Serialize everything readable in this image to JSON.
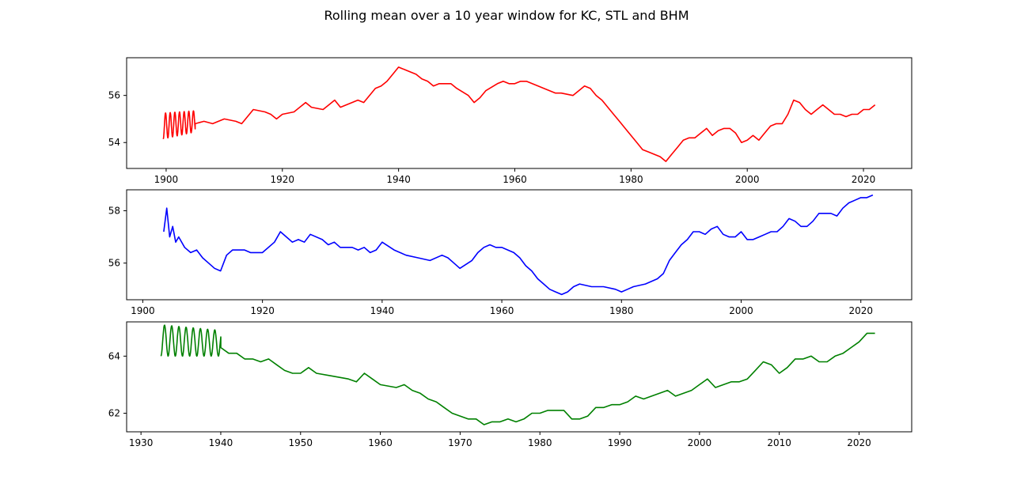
{
  "figure": {
    "title": "Rolling mean over a 10 year window for KC, STL and BHM"
  },
  "chart_data": [
    {
      "type": "line",
      "title": "",
      "xlabel": "",
      "ylabel": "",
      "xlim": [
        1893.2,
        2028.3
      ],
      "ylim": [
        52.9,
        57.6
      ],
      "xticks": [
        1900,
        1920,
        1940,
        1960,
        1980,
        2000,
        2020
      ],
      "yticks": [
        54,
        56
      ],
      "grid": false,
      "series": [
        {
          "color": "#ff0000",
          "oscillation": {
            "start": 1899.5,
            "end": 1905.0,
            "period": 0.8,
            "center_start": 54.7,
            "center_end": 54.9,
            "amplitude_start": 0.55,
            "amplitude_end": 0.45
          },
          "x": [
            1905.0,
            1906.5,
            1908,
            1909,
            1910,
            1912,
            1913,
            1914,
            1915,
            1917,
            1918,
            1919,
            1920,
            1922,
            1924,
            1925,
            1927,
            1928,
            1929,
            1930,
            1932,
            1933,
            1934,
            1935,
            1936,
            1937,
            1938,
            1939,
            1940,
            1941,
            1942,
            1943,
            1944,
            1945,
            1946,
            1947,
            1949,
            1950,
            1952,
            1953,
            1954,
            1955,
            1957,
            1958,
            1959,
            1960,
            1961,
            1962,
            1964,
            1965,
            1967,
            1968,
            1970,
            1971,
            1972,
            1973,
            1974,
            1975,
            1976,
            1977,
            1978,
            1979,
            1980,
            1981,
            1982,
            1983,
            1984,
            1985,
            1986,
            1987,
            1988,
            1989,
            1990,
            1991,
            1992,
            1993,
            1994,
            1995,
            1996,
            1997,
            1998,
            1999,
            2000,
            2001,
            2002,
            2003,
            2004,
            2005,
            2006,
            2007,
            2008,
            2009,
            2010,
            2011,
            2012,
            2013,
            2014,
            2015,
            2016,
            2017,
            2018,
            2019,
            2020,
            2021,
            2022
          ],
          "y": [
            54.8,
            54.9,
            54.8,
            54.9,
            55.0,
            54.9,
            54.8,
            55.1,
            55.4,
            55.3,
            55.2,
            55.0,
            55.2,
            55.3,
            55.7,
            55.5,
            55.4,
            55.6,
            55.8,
            55.5,
            55.7,
            55.8,
            55.7,
            56.0,
            56.3,
            56.4,
            56.6,
            56.9,
            57.2,
            57.1,
            57.0,
            56.9,
            56.7,
            56.6,
            56.4,
            56.5,
            56.5,
            56.3,
            56.0,
            55.7,
            55.9,
            56.2,
            56.5,
            56.6,
            56.5,
            56.5,
            56.6,
            56.6,
            56.4,
            56.3,
            56.1,
            56.1,
            56.0,
            56.2,
            56.4,
            56.3,
            56.0,
            55.8,
            55.5,
            55.2,
            54.9,
            54.6,
            54.3,
            54.0,
            53.7,
            53.6,
            53.5,
            53.4,
            53.2,
            53.5,
            53.8,
            54.1,
            54.2,
            54.2,
            54.4,
            54.6,
            54.3,
            54.5,
            54.6,
            54.6,
            54.4,
            54.0,
            54.1,
            54.3,
            54.1,
            54.4,
            54.7,
            54.8,
            54.8,
            55.2,
            55.8,
            55.7,
            55.4,
            55.2,
            55.4,
            55.6,
            55.4,
            55.2,
            55.2,
            55.1,
            55.2,
            55.2,
            55.4,
            55.4,
            55.6
          ]
        }
      ]
    },
    {
      "type": "line",
      "title": "",
      "xlabel": "",
      "ylabel": "",
      "xlim": [
        1897.3,
        2028.5
      ],
      "ylim": [
        54.6,
        58.8
      ],
      "xticks": [
        1900,
        1920,
        1940,
        1960,
        1980,
        2000,
        2020
      ],
      "yticks": [
        56,
        58
      ],
      "grid": false,
      "series": [
        {
          "color": "#0000ff",
          "x": [
            1903.5,
            1904,
            1904.5,
            1905,
            1905.5,
            1906,
            1907,
            1908,
            1909,
            1910,
            1911,
            1912,
            1913,
            1914,
            1915,
            1917,
            1918,
            1920,
            1922,
            1923,
            1924,
            1925,
            1926,
            1927,
            1928,
            1930,
            1931,
            1932,
            1933,
            1935,
            1936,
            1937,
            1938,
            1939,
            1940,
            1942,
            1944,
            1946,
            1948,
            1950,
            1951,
            1952,
            1953,
            1955,
            1956,
            1957,
            1958,
            1959,
            1960,
            1962,
            1963,
            1964,
            1965,
            1966,
            1967,
            1968,
            1969,
            1970,
            1971,
            1972,
            1973,
            1975,
            1977,
            1979,
            1980,
            1981,
            1982,
            1984,
            1986,
            1987,
            1988,
            1989,
            1990,
            1991,
            1992,
            1993,
            1994,
            1995,
            1996,
            1997,
            1998,
            1999,
            2000,
            2001,
            2002,
            2003,
            2004,
            2005,
            2006,
            2007,
            2008,
            2009,
            2010,
            2011,
            2012,
            2013,
            2014,
            2015,
            2016,
            2017,
            2018,
            2019,
            2020,
            2021,
            2022
          ],
          "y": [
            57.2,
            58.1,
            57.0,
            57.4,
            56.8,
            57.0,
            56.6,
            56.4,
            56.5,
            56.2,
            56.0,
            55.8,
            55.7,
            56.3,
            56.5,
            56.5,
            56.4,
            56.4,
            56.8,
            57.2,
            57.0,
            56.8,
            56.9,
            56.8,
            57.1,
            56.9,
            56.7,
            56.8,
            56.6,
            56.6,
            56.5,
            56.6,
            56.4,
            56.5,
            56.8,
            56.5,
            56.3,
            56.2,
            56.1,
            56.3,
            56.2,
            56.0,
            55.8,
            56.1,
            56.4,
            56.6,
            56.7,
            56.6,
            56.6,
            56.4,
            56.2,
            55.9,
            55.7,
            55.4,
            55.2,
            55.0,
            54.9,
            54.8,
            54.9,
            55.1,
            55.2,
            55.1,
            55.1,
            55.0,
            54.9,
            55.0,
            55.1,
            55.2,
            55.4,
            55.6,
            56.1,
            56.4,
            56.7,
            56.9,
            57.2,
            57.2,
            57.1,
            57.3,
            57.4,
            57.1,
            57.0,
            57.0,
            57.2,
            56.9,
            56.9,
            57.0,
            57.1,
            57.2,
            57.2,
            57.4,
            57.7,
            57.6,
            57.4,
            57.4,
            57.6,
            57.9,
            57.9,
            57.9,
            57.8,
            58.1,
            58.3,
            58.4,
            58.5,
            58.5,
            58.6
          ]
        }
      ]
    },
    {
      "type": "line",
      "title": "",
      "xlabel": "",
      "ylabel": "",
      "xlim": [
        1928.2,
        2026.6
      ],
      "ylim": [
        61.35,
        65.2
      ],
      "xticks": [
        1930,
        1940,
        1950,
        1960,
        1970,
        1980,
        1990,
        2000,
        2010,
        2020
      ],
      "yticks": [
        62,
        64
      ],
      "grid": false,
      "series": [
        {
          "color": "#008000",
          "oscillation": {
            "start": 1932.5,
            "end": 1940.0,
            "period": 0.9,
            "center_start": 64.55,
            "center_end": 64.45,
            "amplitude_start": 0.55,
            "amplitude_end": 0.45
          },
          "x": [
            1940.0,
            1941,
            1942,
            1943,
            1944,
            1945,
            1946,
            1947,
            1948,
            1949,
            1950,
            1951,
            1952,
            1954,
            1956,
            1957,
            1958,
            1959,
            1960,
            1962,
            1963,
            1964,
            1965,
            1966,
            1967,
            1968,
            1969,
            1970,
            1971,
            1972,
            1973,
            1974,
            1975,
            1976,
            1977,
            1978,
            1979,
            1980,
            1981,
            1982,
            1983,
            1984,
            1985,
            1986,
            1987,
            1988,
            1989,
            1990,
            1991,
            1992,
            1993,
            1994,
            1995,
            1996,
            1997,
            1998,
            1999,
            2000,
            2001,
            2002,
            2003,
            2004,
            2005,
            2006,
            2007,
            2008,
            2009,
            2010,
            2011,
            2012,
            2013,
            2014,
            2015,
            2016,
            2017,
            2018,
            2019,
            2020,
            2021,
            2022
          ],
          "y": [
            64.3,
            64.1,
            64.1,
            63.9,
            63.9,
            63.8,
            63.9,
            63.7,
            63.5,
            63.4,
            63.4,
            63.6,
            63.4,
            63.3,
            63.2,
            63.1,
            63.4,
            63.2,
            63.0,
            62.9,
            63.0,
            62.8,
            62.7,
            62.5,
            62.4,
            62.2,
            62.0,
            61.9,
            61.8,
            61.8,
            61.6,
            61.7,
            61.7,
            61.8,
            61.7,
            61.8,
            62.0,
            62.0,
            62.1,
            62.1,
            62.1,
            61.8,
            61.8,
            61.9,
            62.2,
            62.2,
            62.3,
            62.3,
            62.4,
            62.6,
            62.5,
            62.6,
            62.7,
            62.8,
            62.6,
            62.7,
            62.8,
            63.0,
            63.2,
            62.9,
            63.0,
            63.1,
            63.1,
            63.2,
            63.5,
            63.8,
            63.7,
            63.4,
            63.6,
            63.9,
            63.9,
            64.0,
            63.8,
            63.8,
            64.0,
            64.1,
            64.3,
            64.5,
            64.8,
            64.8
          ]
        }
      ]
    }
  ]
}
